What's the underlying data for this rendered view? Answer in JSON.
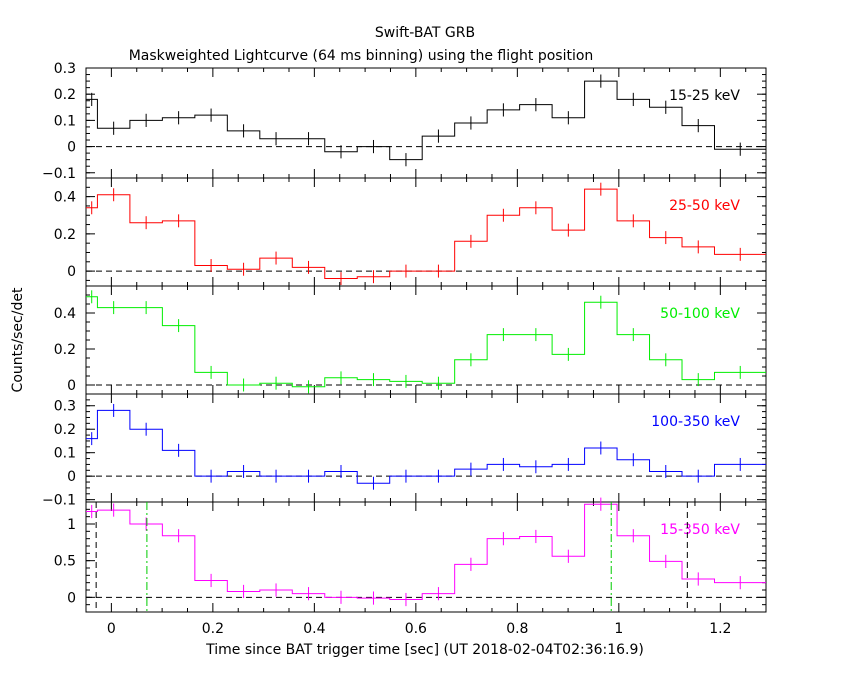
{
  "header": {
    "title": "Swift-BAT GRB",
    "subtitle": "Maskweighted Lightcurve (64 ms binning) using the flight position"
  },
  "axes": {
    "xlabel": "Time since BAT trigger time [sec] (UT 2018-02-04T02:36:16.9)",
    "ylabel": "Counts/sec/det",
    "xlim": [
      -0.05,
      1.29
    ],
    "x_ticks": [
      "0",
      "0.2",
      "0.4",
      "0.6",
      "0.8",
      "1",
      "1.2"
    ]
  },
  "chart_data": {
    "type": "line",
    "binning_note": "64 ms binning",
    "bin_edges": [
      -0.05,
      -0.0275,
      0.0365,
      0.1005,
      0.1645,
      0.2285,
      0.2925,
      0.3565,
      0.4205,
      0.4845,
      0.5485,
      0.6125,
      0.6765,
      0.7405,
      0.8045,
      0.8685,
      0.9325,
      0.9965,
      1.0605,
      1.1245,
      1.1885,
      1.29
    ],
    "panels": [
      {
        "name": "15-25 keV",
        "color": "#000000",
        "ylim": [
          -0.12,
          0.3
        ],
        "ticks": [
          -0.1,
          0,
          0.1,
          0.2,
          0.3
        ],
        "values": [
          0.18,
          0.07,
          0.1,
          0.11,
          0.12,
          0.06,
          0.03,
          0.03,
          -0.02,
          0.0,
          -0.05,
          0.04,
          0.09,
          0.14,
          0.16,
          0.11,
          0.25,
          0.18,
          0.15,
          0.08,
          -0.01
        ]
      },
      {
        "name": "25-50 keV",
        "color": "#ff0000",
        "ylim": [
          -0.08,
          0.5
        ],
        "ticks": [
          0,
          0.2,
          0.4
        ],
        "values": [
          0.34,
          0.41,
          0.26,
          0.27,
          0.03,
          0.01,
          0.07,
          0.02,
          -0.04,
          -0.03,
          0.0,
          0.0,
          0.16,
          0.3,
          0.34,
          0.22,
          0.44,
          0.27,
          0.18,
          0.13,
          0.09
        ]
      },
      {
        "name": "50-100 keV",
        "color": "#00ee00",
        "ylim": [
          -0.05,
          0.55
        ],
        "ticks": [
          0,
          0.2,
          0.4
        ],
        "values": [
          0.49,
          0.43,
          0.43,
          0.33,
          0.07,
          0.0,
          0.01,
          -0.01,
          0.04,
          0.03,
          0.02,
          0.01,
          0.14,
          0.28,
          0.28,
          0.17,
          0.46,
          0.28,
          0.14,
          0.03,
          0.07
        ]
      },
      {
        "name": "100-350 keV",
        "color": "#0000ff",
        "ylim": [
          -0.11,
          0.35
        ],
        "ticks": [
          -0.1,
          0,
          0.1,
          0.2,
          0.3
        ],
        "values": [
          0.16,
          0.28,
          0.2,
          0.11,
          0.0,
          0.02,
          0.0,
          0.0,
          0.02,
          -0.03,
          0.0,
          0.0,
          0.03,
          0.05,
          0.04,
          0.05,
          0.12,
          0.07,
          0.02,
          0.0,
          0.05
        ]
      },
      {
        "name": "15-350 keV",
        "color": "#ff00ff",
        "ylim": [
          -0.2,
          1.3
        ],
        "ticks": [
          0,
          0.5,
          1
        ],
        "values": [
          1.17,
          1.19,
          1.0,
          0.84,
          0.23,
          0.08,
          0.1,
          0.05,
          0.0,
          -0.01,
          -0.03,
          0.05,
          0.45,
          0.8,
          0.83,
          0.56,
          1.27,
          0.84,
          0.49,
          0.25,
          0.2
        ]
      }
    ],
    "markers_bottom_panel": [
      {
        "x": -0.03,
        "style": "dash",
        "color": "#000000"
      },
      {
        "x": 0.07,
        "style": "dashdot",
        "color": "#00cc00"
      },
      {
        "x": 0.985,
        "style": "dashdot",
        "color": "#00cc00"
      },
      {
        "x": 1.135,
        "style": "dash",
        "color": "#000000"
      }
    ],
    "grid": false,
    "legend_placement": "top-right of each panel"
  }
}
